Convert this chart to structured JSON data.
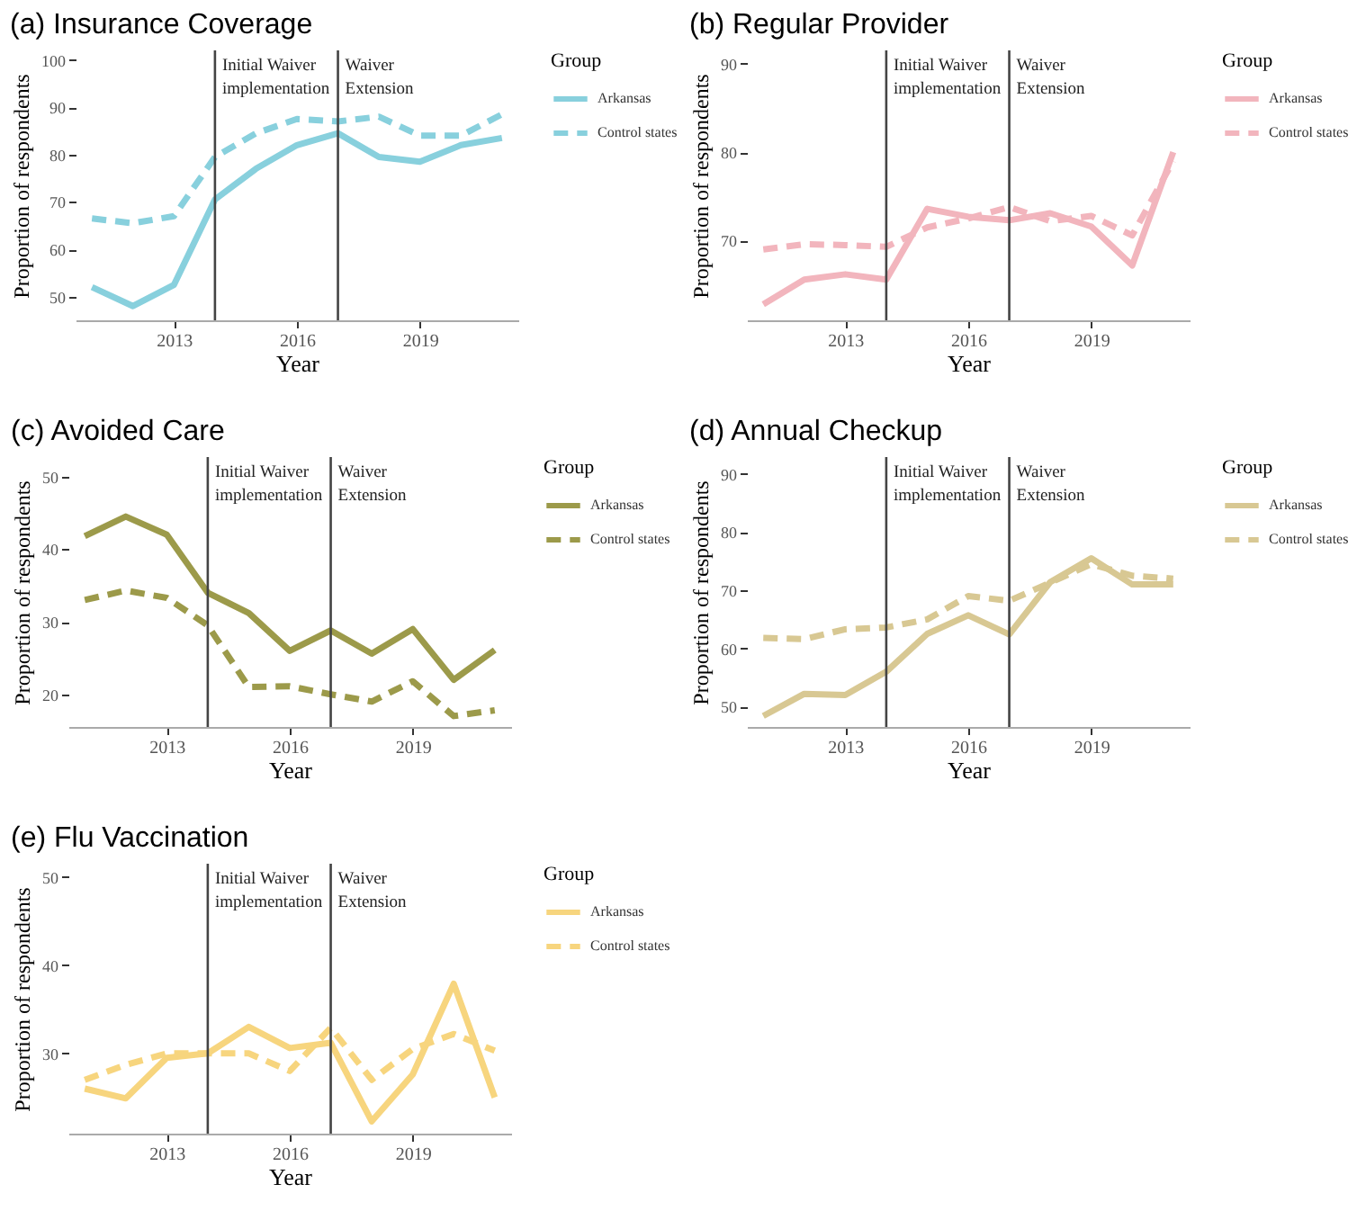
{
  "chart_data": [
    {
      "type": "line",
      "title": "(a) Insurance Coverage",
      "xlabel": "Year",
      "ylabel": "Proportion of respondents",
      "legend_title": "Group",
      "legend": "right",
      "grid": false,
      "marker": "none",
      "x": [
        2011,
        2012,
        2013,
        2014,
        2015,
        2016,
        2017,
        2018,
        2019,
        2020,
        2021
      ],
      "series": [
        {
          "name": "Arkansas",
          "color": "#88d0dd",
          "line_style": "solid",
          "values": [
            52,
            48,
            52.5,
            70.5,
            77,
            82,
            84.5,
            79.5,
            78.5,
            82,
            83.5
          ]
        },
        {
          "name": "Control states",
          "color": "#88d0dd",
          "line_style": "dashed",
          "values": [
            66.5,
            65.5,
            67,
            79.5,
            84.5,
            87.5,
            87,
            88,
            84,
            84,
            88.5
          ]
        }
      ],
      "xlim": [
        2010.6,
        2021.4
      ],
      "xticks": [
        2013,
        2016,
        2019
      ],
      "ylim": [
        45,
        102
      ],
      "yticks": [
        50,
        60,
        70,
        80,
        90,
        100
      ],
      "ref_lines": [
        {
          "axis": "x",
          "value": 2014,
          "label": "Initial Waiver implementation"
        },
        {
          "axis": "x",
          "value": 2017,
          "label": "Waiver Extension"
        }
      ]
    },
    {
      "type": "line",
      "title": "(b) Regular Provider",
      "xlabel": "Year",
      "ylabel": "Proportion of respondents",
      "legend_title": "Group",
      "legend": "right",
      "grid": false,
      "marker": "none",
      "x": [
        2011,
        2012,
        2013,
        2014,
        2015,
        2016,
        2017,
        2018,
        2019,
        2020,
        2021
      ],
      "series": [
        {
          "name": "Arkansas",
          "color": "#f2b5bd",
          "line_style": "solid",
          "values": [
            62.8,
            65.6,
            66.2,
            65.6,
            73.6,
            72.7,
            72.3,
            73.1,
            71.6,
            67.2,
            80
          ]
        },
        {
          "name": "Control states",
          "color": "#f2b5bd",
          "line_style": "dashed",
          "values": [
            69,
            69.6,
            69.5,
            69.3,
            71.5,
            72.5,
            73.8,
            72.2,
            72.8,
            70.6,
            79
          ]
        }
      ],
      "xlim": [
        2010.6,
        2021.4
      ],
      "xticks": [
        2013,
        2016,
        2019
      ],
      "ylim": [
        61,
        91.5
      ],
      "yticks": [
        70,
        80,
        90
      ],
      "ref_lines": [
        {
          "axis": "x",
          "value": 2014,
          "label": "Initial Waiver implementation"
        },
        {
          "axis": "x",
          "value": 2017,
          "label": "Waiver Extension"
        }
      ]
    },
    {
      "type": "line",
      "title": "(c) Avoided Care",
      "xlabel": "Year",
      "ylabel": "Proportion of respondents",
      "legend_title": "Group",
      "legend": "right",
      "grid": false,
      "marker": "none",
      "x": [
        2011,
        2012,
        2013,
        2014,
        2015,
        2016,
        2017,
        2018,
        2019,
        2020,
        2021
      ],
      "series": [
        {
          "name": "Arkansas",
          "color": "#9c9a4a",
          "line_style": "solid",
          "values": [
            41.8,
            44.5,
            42,
            34,
            31.2,
            26,
            28.8,
            25.6,
            29,
            22,
            26.1
          ]
        },
        {
          "name": "Control states",
          "color": "#9c9a4a",
          "line_style": "dashed",
          "values": [
            33,
            34.3,
            33.3,
            29.5,
            21,
            21.1,
            20,
            19,
            21.8,
            17,
            17.8
          ]
        }
      ],
      "xlim": [
        2010.6,
        2021.4
      ],
      "xticks": [
        2013,
        2016,
        2019
      ],
      "ylim": [
        15.5,
        52.7
      ],
      "yticks": [
        20,
        30,
        40,
        50
      ],
      "ref_lines": [
        {
          "axis": "x",
          "value": 2014,
          "label": "Initial Waiver implementation"
        },
        {
          "axis": "x",
          "value": 2017,
          "label": "Waiver Extension"
        }
      ]
    },
    {
      "type": "line",
      "title": "(d) Annual Checkup",
      "xlabel": "Year",
      "ylabel": "Proportion of respondents",
      "legend_title": "Group",
      "legend": "right",
      "grid": false,
      "marker": "none",
      "x": [
        2011,
        2012,
        2013,
        2014,
        2015,
        2016,
        2017,
        2018,
        2019,
        2020,
        2021
      ],
      "series": [
        {
          "name": "Arkansas",
          "color": "#d8c893",
          "line_style": "solid",
          "values": [
            48.4,
            52.2,
            52,
            56,
            62.5,
            65.7,
            62.4,
            71.4,
            75.5,
            71,
            71
          ]
        },
        {
          "name": "Control states",
          "color": "#d8c893",
          "line_style": "dashed",
          "values": [
            61.8,
            61.6,
            63.3,
            63.6,
            65,
            69,
            68.2,
            71.3,
            74.5,
            72.5,
            72
          ]
        }
      ],
      "xlim": [
        2010.6,
        2021.4
      ],
      "xticks": [
        2013,
        2016,
        2019
      ],
      "ylim": [
        46.5,
        92.9
      ],
      "yticks": [
        50,
        60,
        70,
        80,
        90
      ],
      "ref_lines": [
        {
          "axis": "x",
          "value": 2014,
          "label": "Initial Waiver implementation"
        },
        {
          "axis": "x",
          "value": 2017,
          "label": "Waiver Extension"
        }
      ]
    },
    {
      "type": "line",
      "title": "(e) Flu Vaccination",
      "xlabel": "Year",
      "ylabel": "Proportion of respondents",
      "legend_title": "Group",
      "legend": "right",
      "grid": false,
      "marker": "none",
      "x": [
        2011,
        2012,
        2013,
        2014,
        2015,
        2016,
        2017,
        2018,
        2019,
        2020,
        2021
      ],
      "series": [
        {
          "name": "Arkansas",
          "color": "#f7d57e",
          "line_style": "solid",
          "values": [
            26,
            24.9,
            29.5,
            30,
            33,
            30.6,
            31.2,
            22.3,
            27.6,
            37.9,
            25
          ]
        },
        {
          "name": "Control states",
          "color": "#f7d57e",
          "line_style": "dashed",
          "values": [
            27,
            28.7,
            30,
            30,
            30,
            28,
            32.9,
            27,
            30.5,
            32.2,
            30.3
          ]
        }
      ],
      "xlim": [
        2010.6,
        2021.4
      ],
      "xticks": [
        2013,
        2016,
        2019
      ],
      "ylim": [
        20.9,
        51.5
      ],
      "yticks": [
        30,
        40,
        50
      ],
      "ref_lines": [
        {
          "axis": "x",
          "value": 2014,
          "label": "Initial Waiver implementation"
        },
        {
          "axis": "x",
          "value": 2017,
          "label": "Waiver Extension"
        }
      ]
    }
  ]
}
